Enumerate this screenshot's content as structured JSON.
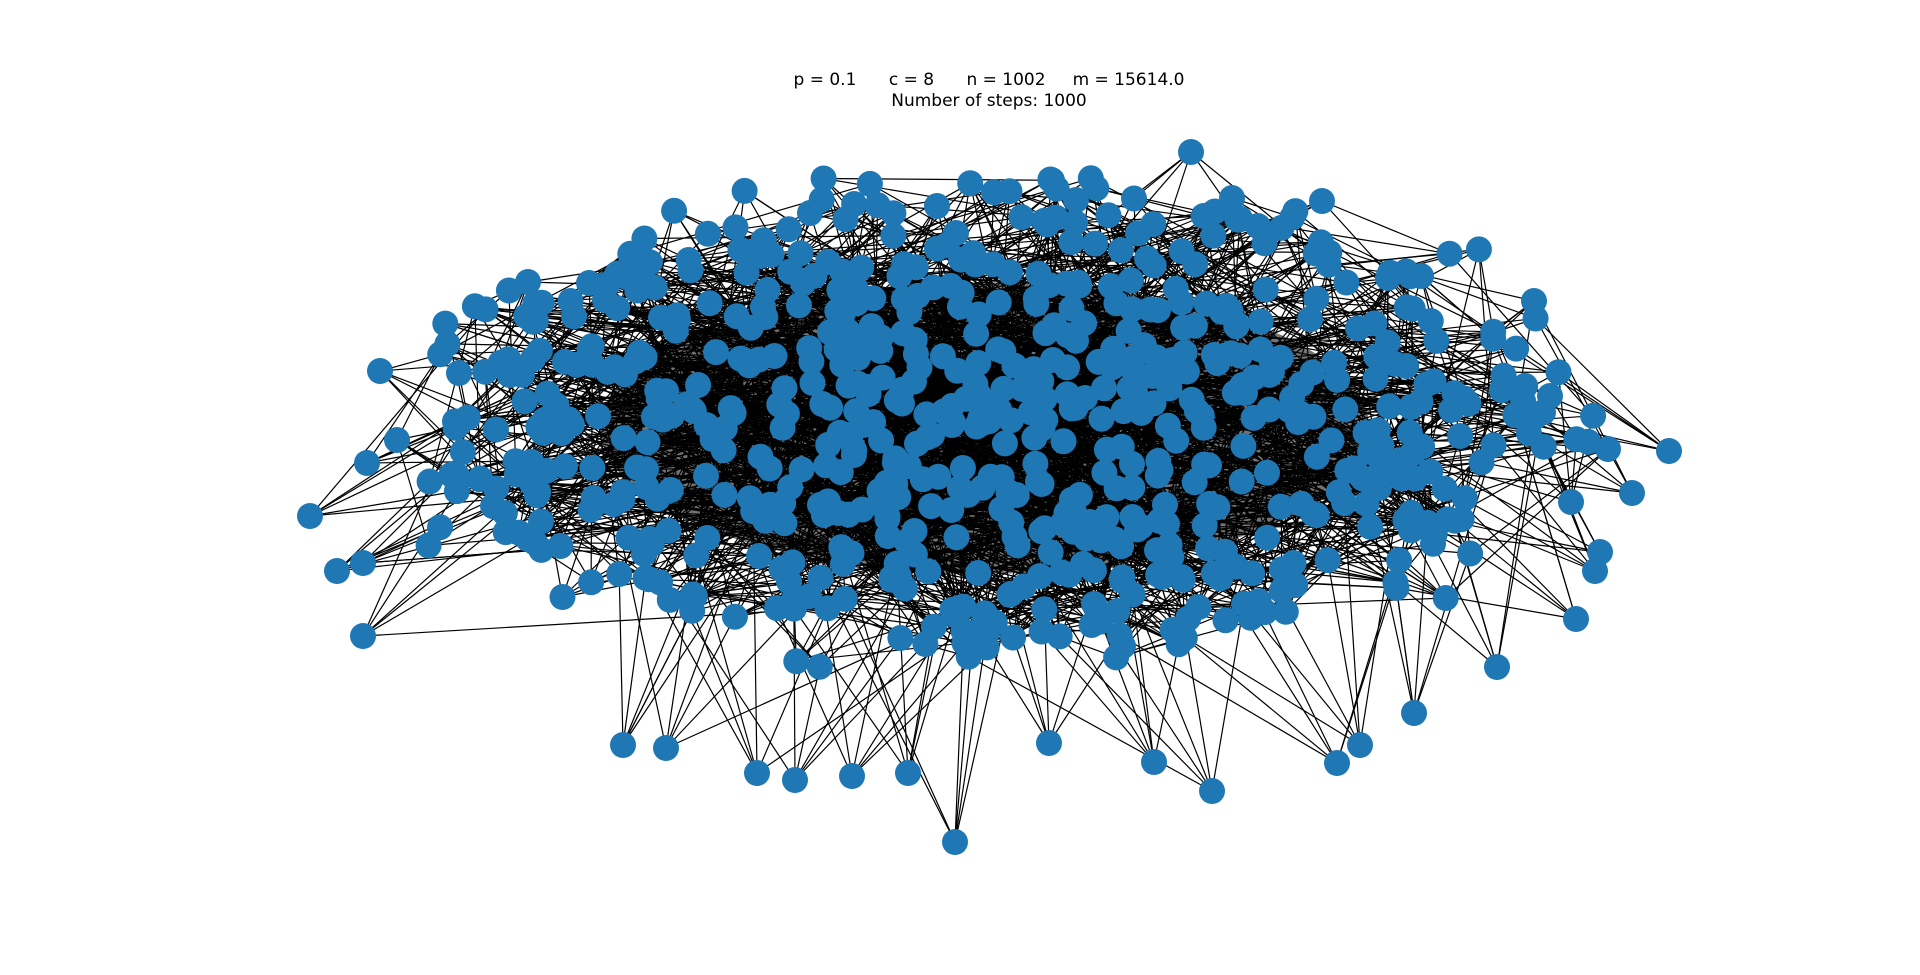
{
  "figure": {
    "title_line_1": "p = 0.1      c = 8      n = 1002     m = 15614.0",
    "title_line_2": "Number of steps: 1000"
  },
  "graph": {
    "parameters": {
      "p": 0.1,
      "c": 8,
      "n": 1002,
      "m": 15614.0,
      "steps": 1000
    },
    "node_color": "#1f77b4",
    "edge_color": "#000000"
  }
}
